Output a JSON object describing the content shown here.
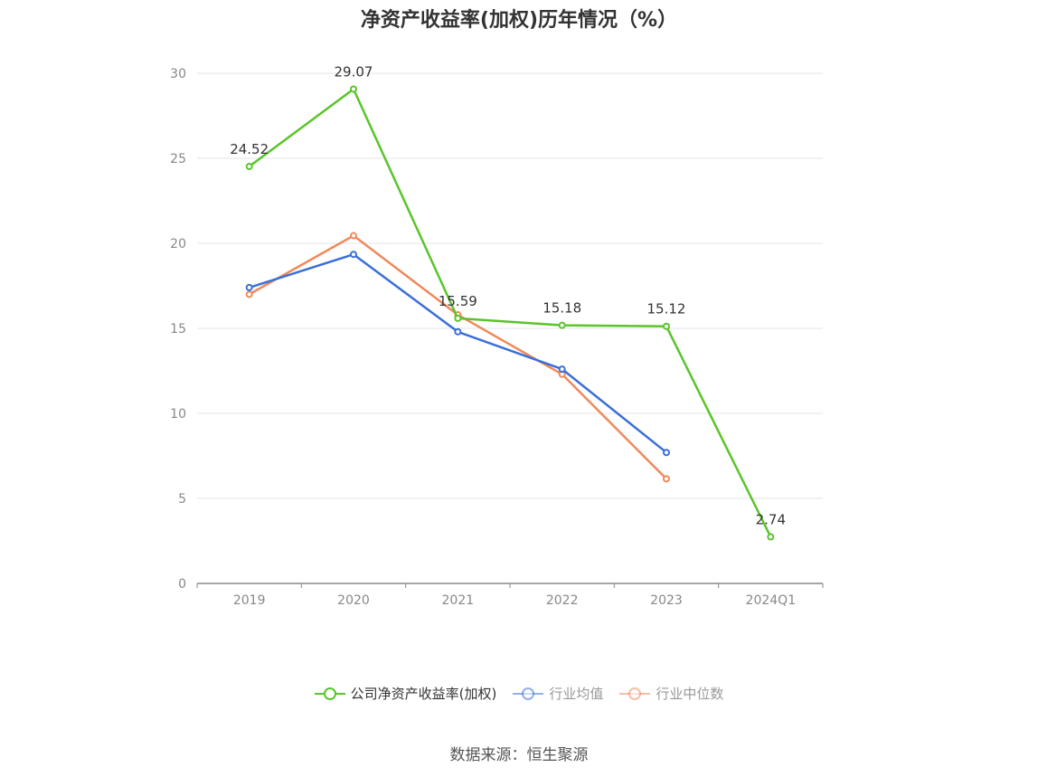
{
  "chart_data": {
    "type": "line",
    "title": "净资产收益率(加权)历年情况（%）",
    "categories": [
      "2019",
      "2020",
      "2021",
      "2022",
      "2023",
      "2024Q1"
    ],
    "ylim": [
      0,
      30
    ],
    "yticks": [
      0,
      5,
      10,
      15,
      20,
      25,
      30
    ],
    "grid": true,
    "legend_position": "bottom",
    "series": [
      {
        "name": "公司净资产收益率(加权)",
        "color": "#5ac42a",
        "values": [
          24.52,
          29.07,
          15.59,
          15.18,
          15.12,
          2.74
        ],
        "labels": [
          "24.52",
          "29.07",
          "15.59",
          "15.18",
          "15.12",
          "2.74"
        ]
      },
      {
        "name": "行业均值",
        "color": "#3a6fd8",
        "values": [
          17.4,
          19.35,
          14.8,
          12.6,
          7.7,
          null
        ]
      },
      {
        "name": "行业中位数",
        "color": "#f0895a",
        "values": [
          17.0,
          20.45,
          15.8,
          12.3,
          6.15,
          null
        ]
      }
    ]
  },
  "legend": {
    "colors": {
      "active_text": "#333333",
      "muted_text": "#999999"
    }
  },
  "source": "数据来源：恒生聚源"
}
